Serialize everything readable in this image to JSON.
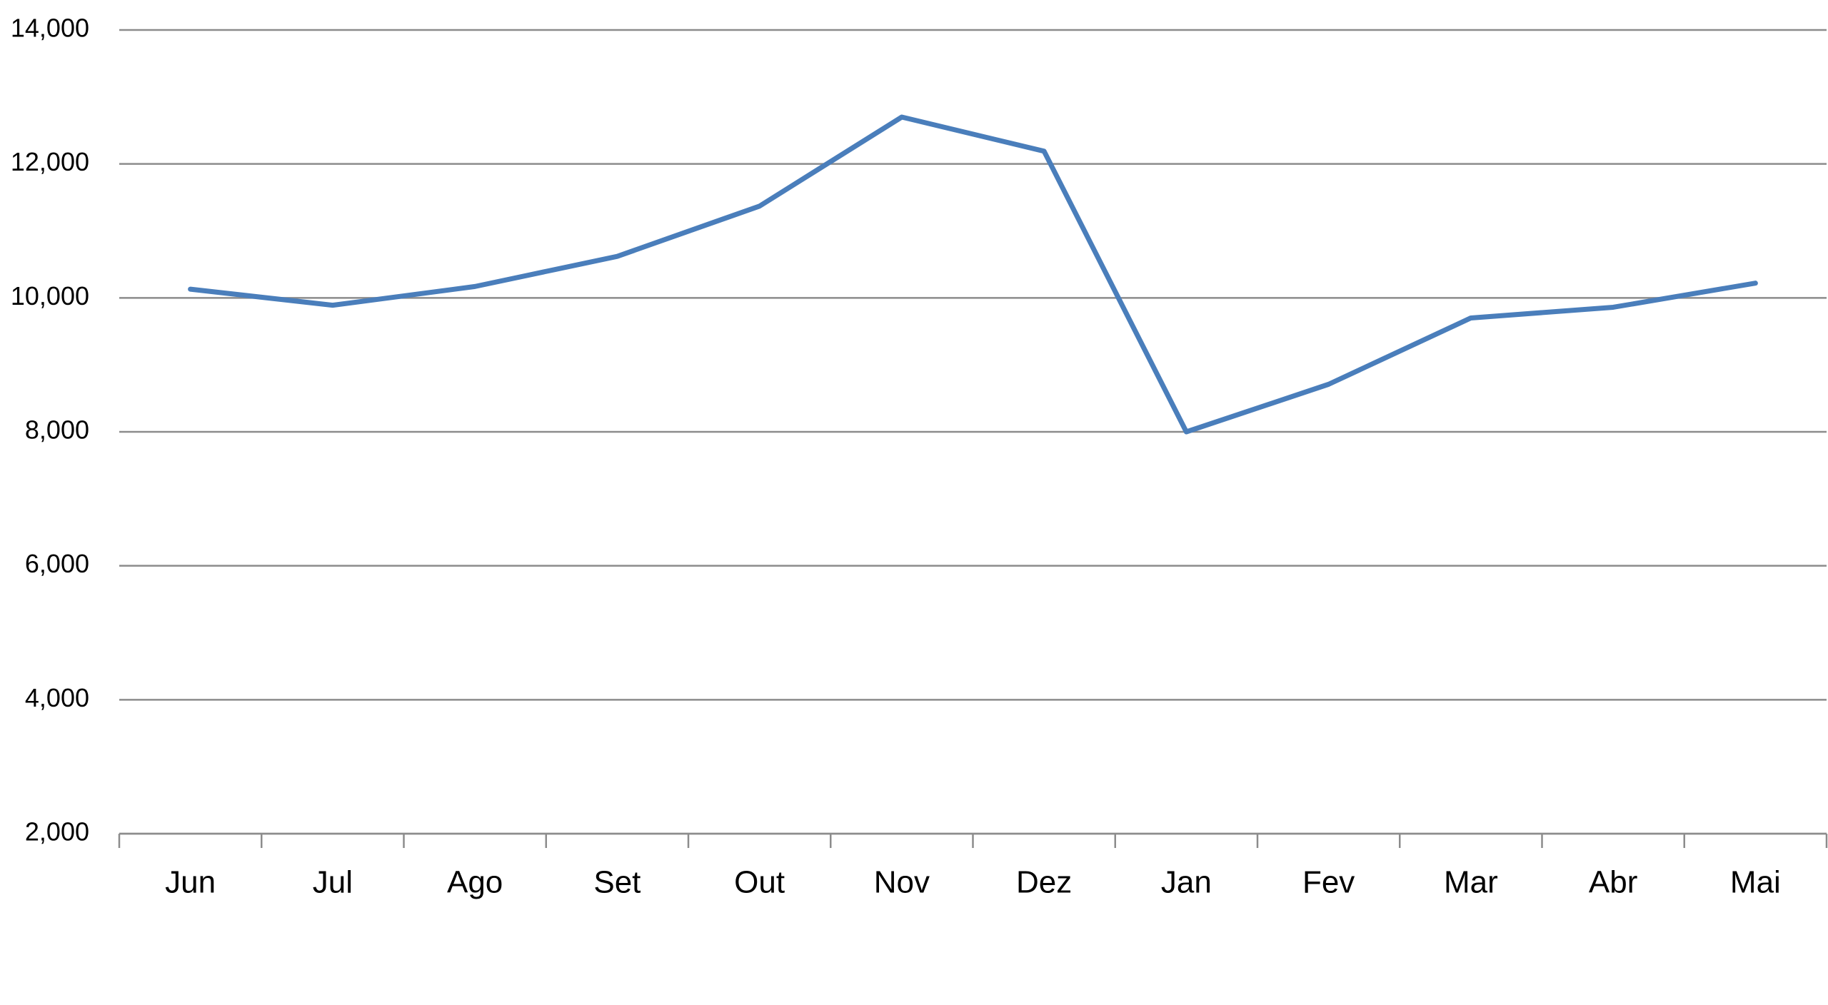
{
  "chart_data": {
    "type": "line",
    "categories": [
      "Jun",
      "Jul",
      "Ago",
      "Set",
      "Out",
      "Nov",
      "Dez",
      "Jan",
      "Fev",
      "Mar",
      "Abr",
      "Mai"
    ],
    "series": [
      {
        "color": "#4a7ebb",
        "values": [
          10130,
          9890,
          10170,
          10620,
          11370,
          12700,
          12190,
          8000,
          8710,
          9700,
          9860,
          10220
        ]
      }
    ],
    "ylim": [
      2000,
      14000
    ],
    "yticks": [
      {
        "value": 2000,
        "label": "2,000"
      },
      {
        "value": 4000,
        "label": "4,000"
      },
      {
        "value": 6000,
        "label": "6,000"
      },
      {
        "value": 8000,
        "label": "8,000"
      },
      {
        "value": 10000,
        "label": "10,000"
      },
      {
        "value": 12000,
        "label": "12,000"
      },
      {
        "value": 14000,
        "label": "14,000"
      }
    ],
    "grid": true
  }
}
